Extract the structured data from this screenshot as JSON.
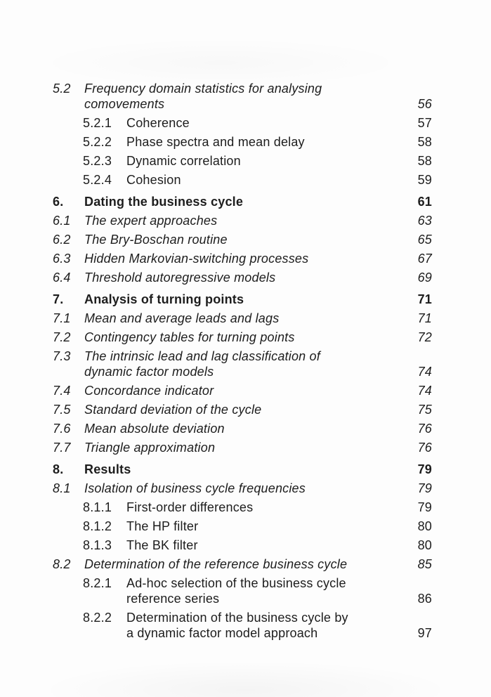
{
  "page": {
    "background": "#fdfdfd",
    "text_color": "#1d1d1d"
  },
  "toc": {
    "entries": [
      {
        "number": "5.2",
        "level": "section",
        "line1": "Frequency domain statistics for analysing",
        "line2": "comovements",
        "page": "56"
      },
      {
        "number": "5.2.1",
        "level": "subsection",
        "line1": "Coherence",
        "page": "57"
      },
      {
        "number": "5.2.2",
        "level": "subsection",
        "line1": "Phase spectra and mean delay",
        "page": "58"
      },
      {
        "number": "5.2.3",
        "level": "subsection",
        "line1": "Dynamic correlation",
        "page": "58"
      },
      {
        "number": "5.2.4",
        "level": "subsection",
        "line1": "Cohesion",
        "page": "59"
      },
      {
        "number": "6.",
        "level": "chapter",
        "line1": "Dating the business cycle",
        "page": "61"
      },
      {
        "number": "6.1",
        "level": "section",
        "line1": "The expert approaches",
        "page": "63"
      },
      {
        "number": "6.2",
        "level": "section",
        "line1": "The Bry-Boschan routine",
        "page": "65"
      },
      {
        "number": "6.3",
        "level": "section",
        "line1": "Hidden Markovian-switching processes",
        "page": "67"
      },
      {
        "number": "6.4",
        "level": "section",
        "line1": "Threshold autoregressive models",
        "page": "69"
      },
      {
        "number": "7.",
        "level": "chapter",
        "line1": "Analysis of turning points",
        "page": "71"
      },
      {
        "number": "7.1",
        "level": "section",
        "line1": "Mean and average leads and lags",
        "page": "71"
      },
      {
        "number": "7.2",
        "level": "section",
        "line1": "Contingency tables for turning points",
        "page": "72"
      },
      {
        "number": "7.3",
        "level": "section",
        "line1": "The intrinsic lead and lag classification of",
        "line2": "dynamic factor models",
        "page": "74"
      },
      {
        "number": "7.4",
        "level": "section",
        "line1": "Concordance indicator",
        "page": "74"
      },
      {
        "number": "7.5",
        "level": "section",
        "line1": "Standard deviation of the cycle",
        "page": "75"
      },
      {
        "number": "7.6",
        "level": "section",
        "line1": "Mean absolute deviation",
        "page": "76"
      },
      {
        "number": "7.7",
        "level": "section",
        "line1": "Triangle approximation",
        "page": "76"
      },
      {
        "number": "8.",
        "level": "chapter",
        "line1": "Results",
        "page": "79"
      },
      {
        "number": "8.1",
        "level": "section",
        "line1": "Isolation of business cycle frequencies",
        "page": "79"
      },
      {
        "number": "8.1.1",
        "level": "subsection",
        "line1": "First-order differences",
        "page": "79"
      },
      {
        "number": "8.1.2",
        "level": "subsection",
        "line1": "The HP filter",
        "page": "80"
      },
      {
        "number": "8.1.3",
        "level": "subsection",
        "line1": "The BK filter",
        "page": "80"
      },
      {
        "number": "8.2",
        "level": "section",
        "line1": "Determination of the reference business cycle",
        "page": "85"
      },
      {
        "number": "8.2.1",
        "level": "subsection",
        "line1": "Ad-hoc selection of the business cycle",
        "line2": "reference series",
        "page": "86"
      },
      {
        "number": "8.2.2",
        "level": "subsection",
        "line1": "Determination of the business cycle by",
        "line2": "a dynamic factor model approach",
        "page": "97"
      }
    ]
  }
}
